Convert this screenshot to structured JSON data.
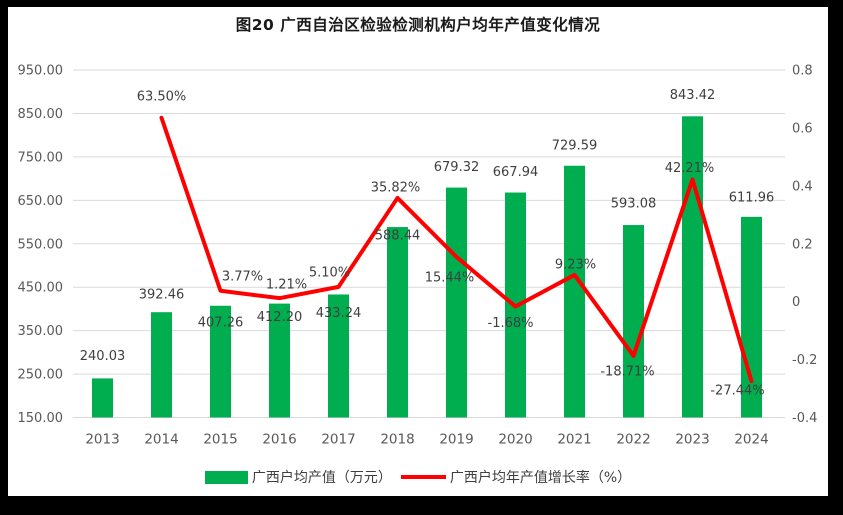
{
  "title": "图20 广西自治区检验检测机构户均年产值变化情况",
  "legend": [
    {
      "label": "广西户均产值（万元）",
      "color": "#00AE50",
      "type": "bar"
    },
    {
      "label": "广西户均年产值增长率（%）",
      "color": "#FF0000",
      "type": "line"
    }
  ],
  "chart_data": {
    "type": "bar",
    "subtype": "combo-bar-line-dual-axis",
    "title": "图20 广西自治区检验检测机构户均年产值变化情况",
    "categories": [
      "2013",
      "2014",
      "2015",
      "2016",
      "2017",
      "2018",
      "2019",
      "2020",
      "2021",
      "2022",
      "2023",
      "2024"
    ],
    "series": [
      {
        "name": "广西户均产值（万元）",
        "type": "bar",
        "axis": "left",
        "color": "#00AE50",
        "values": [
          240.03,
          392.46,
          407.26,
          412.2,
          433.24,
          588.44,
          679.32,
          667.94,
          729.59,
          593.08,
          843.42,
          611.96
        ],
        "label_dy": [
          -23,
          -18,
          16,
          13,
          18,
          8,
          -21,
          -21,
          -21,
          -22,
          -22,
          -20
        ]
      },
      {
        "name": "广西户均年产值增长率（%）",
        "type": "line",
        "axis": "right",
        "color": "#FF0000",
        "values_percent": [
          null,
          63.5,
          3.77,
          1.21,
          5.1,
          35.82,
          15.44,
          -1.68,
          9.23,
          -18.71,
          42.21,
          -27.44
        ],
        "label_offsets": [
          null,
          [
            0,
            -22
          ],
          [
            22,
            -15
          ],
          [
            7,
            -14
          ],
          [
            -9,
            -15
          ],
          [
            -2,
            -11
          ],
          [
            -7,
            20
          ],
          [
            -5,
            16
          ],
          [
            1,
            -11
          ],
          [
            -6,
            15
          ],
          [
            -3,
            -12
          ],
          [
            -14,
            9
          ]
        ]
      }
    ],
    "left_axis": {
      "min": 150,
      "max": 950,
      "step": 100,
      "tick_labels": [
        "950.00",
        "850.00",
        "750.00",
        "650.00",
        "550.00",
        "450.00",
        "350.00",
        "250.00",
        "150.00"
      ]
    },
    "right_axis": {
      "min": -0.4,
      "max": 0.8,
      "step": 0.2,
      "tick_labels": [
        "0.8",
        "0.6",
        "0.4",
        "0.2",
        "0",
        "-0.2",
        "-0.4"
      ]
    },
    "grid": true,
    "legend_position": "bottom"
  },
  "colors": {
    "grid": "#D9D9D9",
    "tick_text": "#595959",
    "data_label": "#3F3F3F",
    "background": "#FFFFFF",
    "frame": "#000000"
  }
}
